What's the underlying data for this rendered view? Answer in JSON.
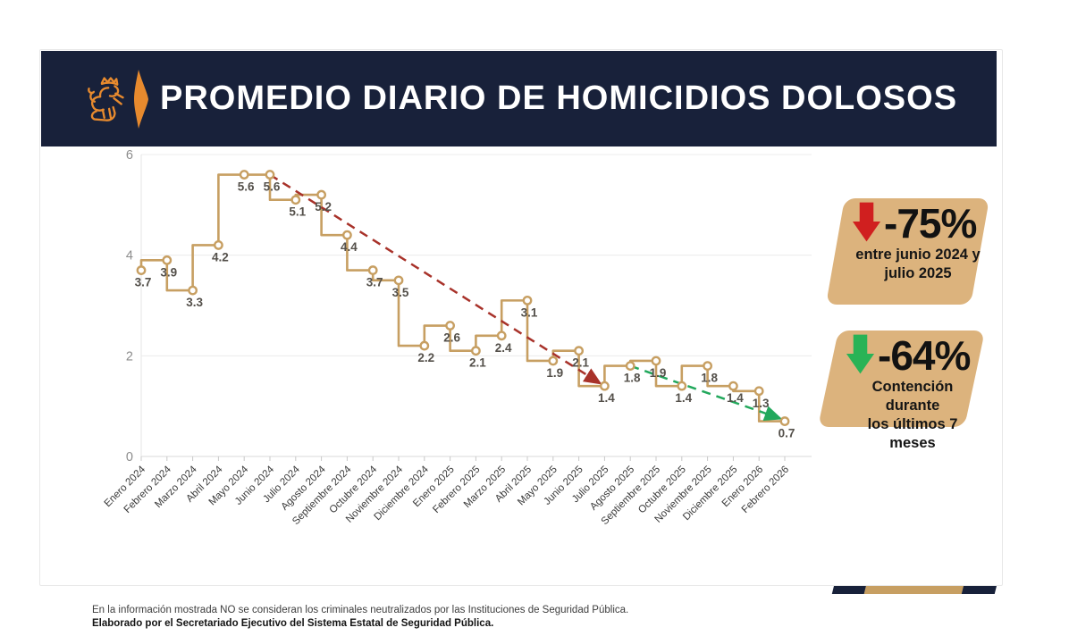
{
  "header": {
    "title": "PROMEDIO DIARIO DE HOMICIDIOS DOLOSOS",
    "logo": "lion-crest-icon",
    "bg_color": "#18213a",
    "accent_color": "#e78a2e"
  },
  "chart_data": {
    "type": "line",
    "step": "before",
    "title": "Promedio diario de homicidios dolosos",
    "categories": [
      "Enero 2024",
      "Febrero 2024",
      "Marzo 2024",
      "Abril 2024",
      "Mayo 2024",
      "Junio 2024",
      "Julio 2024",
      "Agosto 2024",
      "Septiembre 2024",
      "Octubre 2024",
      "Noviembre 2024",
      "Diciembre 2024",
      "Enero 2025",
      "Febrero 2025",
      "Marzo 2025",
      "Abril 2025",
      "Mayo 2025",
      "Junio 2025",
      "Julio 2025",
      "Agosto 2025",
      "Septiembre 2025",
      "Octubre 2025",
      "Noviembre 2025",
      "Diciembre 2025",
      "Enero 2026",
      "Febrero 2026"
    ],
    "values": [
      3.7,
      3.9,
      3.3,
      4.2,
      5.6,
      5.6,
      5.1,
      5.2,
      4.4,
      3.7,
      3.5,
      2.2,
      2.6,
      2.1,
      2.4,
      3.1,
      1.9,
      2.1,
      1.4,
      1.8,
      1.9,
      1.4,
      1.8,
      1.4,
      1.3,
      0.7
    ],
    "ylim": [
      0,
      6
    ],
    "yticks": [
      0,
      2,
      4,
      6
    ],
    "grid": true,
    "series_color": "#c79f62",
    "marker_fill": "#ffffff",
    "value_label_color": "#54504a",
    "axis_label_color": "#8c8c8c",
    "xtick_label_color": "#3a3a3a",
    "trends": [
      {
        "name": "decline-junio2024-julio2025",
        "from_index": 5,
        "to_index": 18,
        "color": "#a8322a",
        "style": "dashed"
      },
      {
        "name": "containment-last-7-months",
        "from_index": 19,
        "to_index": 25,
        "color": "#22a85c",
        "style": "dashed"
      }
    ]
  },
  "callouts": [
    {
      "percent": "-75%",
      "line1": "entre junio 2024 y",
      "line2": "julio 2025",
      "arrow_color": "#d01f1f",
      "bg_color": "#dcb37d"
    },
    {
      "percent": "-64%",
      "line1": "Contención durante",
      "line2": "los últimos 7 meses",
      "arrow_color": "#29b356",
      "bg_color": "#dcb37d"
    }
  ],
  "footer": {
    "line1": "En la información mostrada NO se consideran los criminales neutralizados por las Instituciones de Seguridad Pública.",
    "line2": "Elaborado por el Secretariado Ejecutivo del Sistema Estatal de Seguridad Pública."
  },
  "decor_strip": {
    "colors": [
      "#18213a",
      "#c79f62",
      "#18213a"
    ]
  }
}
